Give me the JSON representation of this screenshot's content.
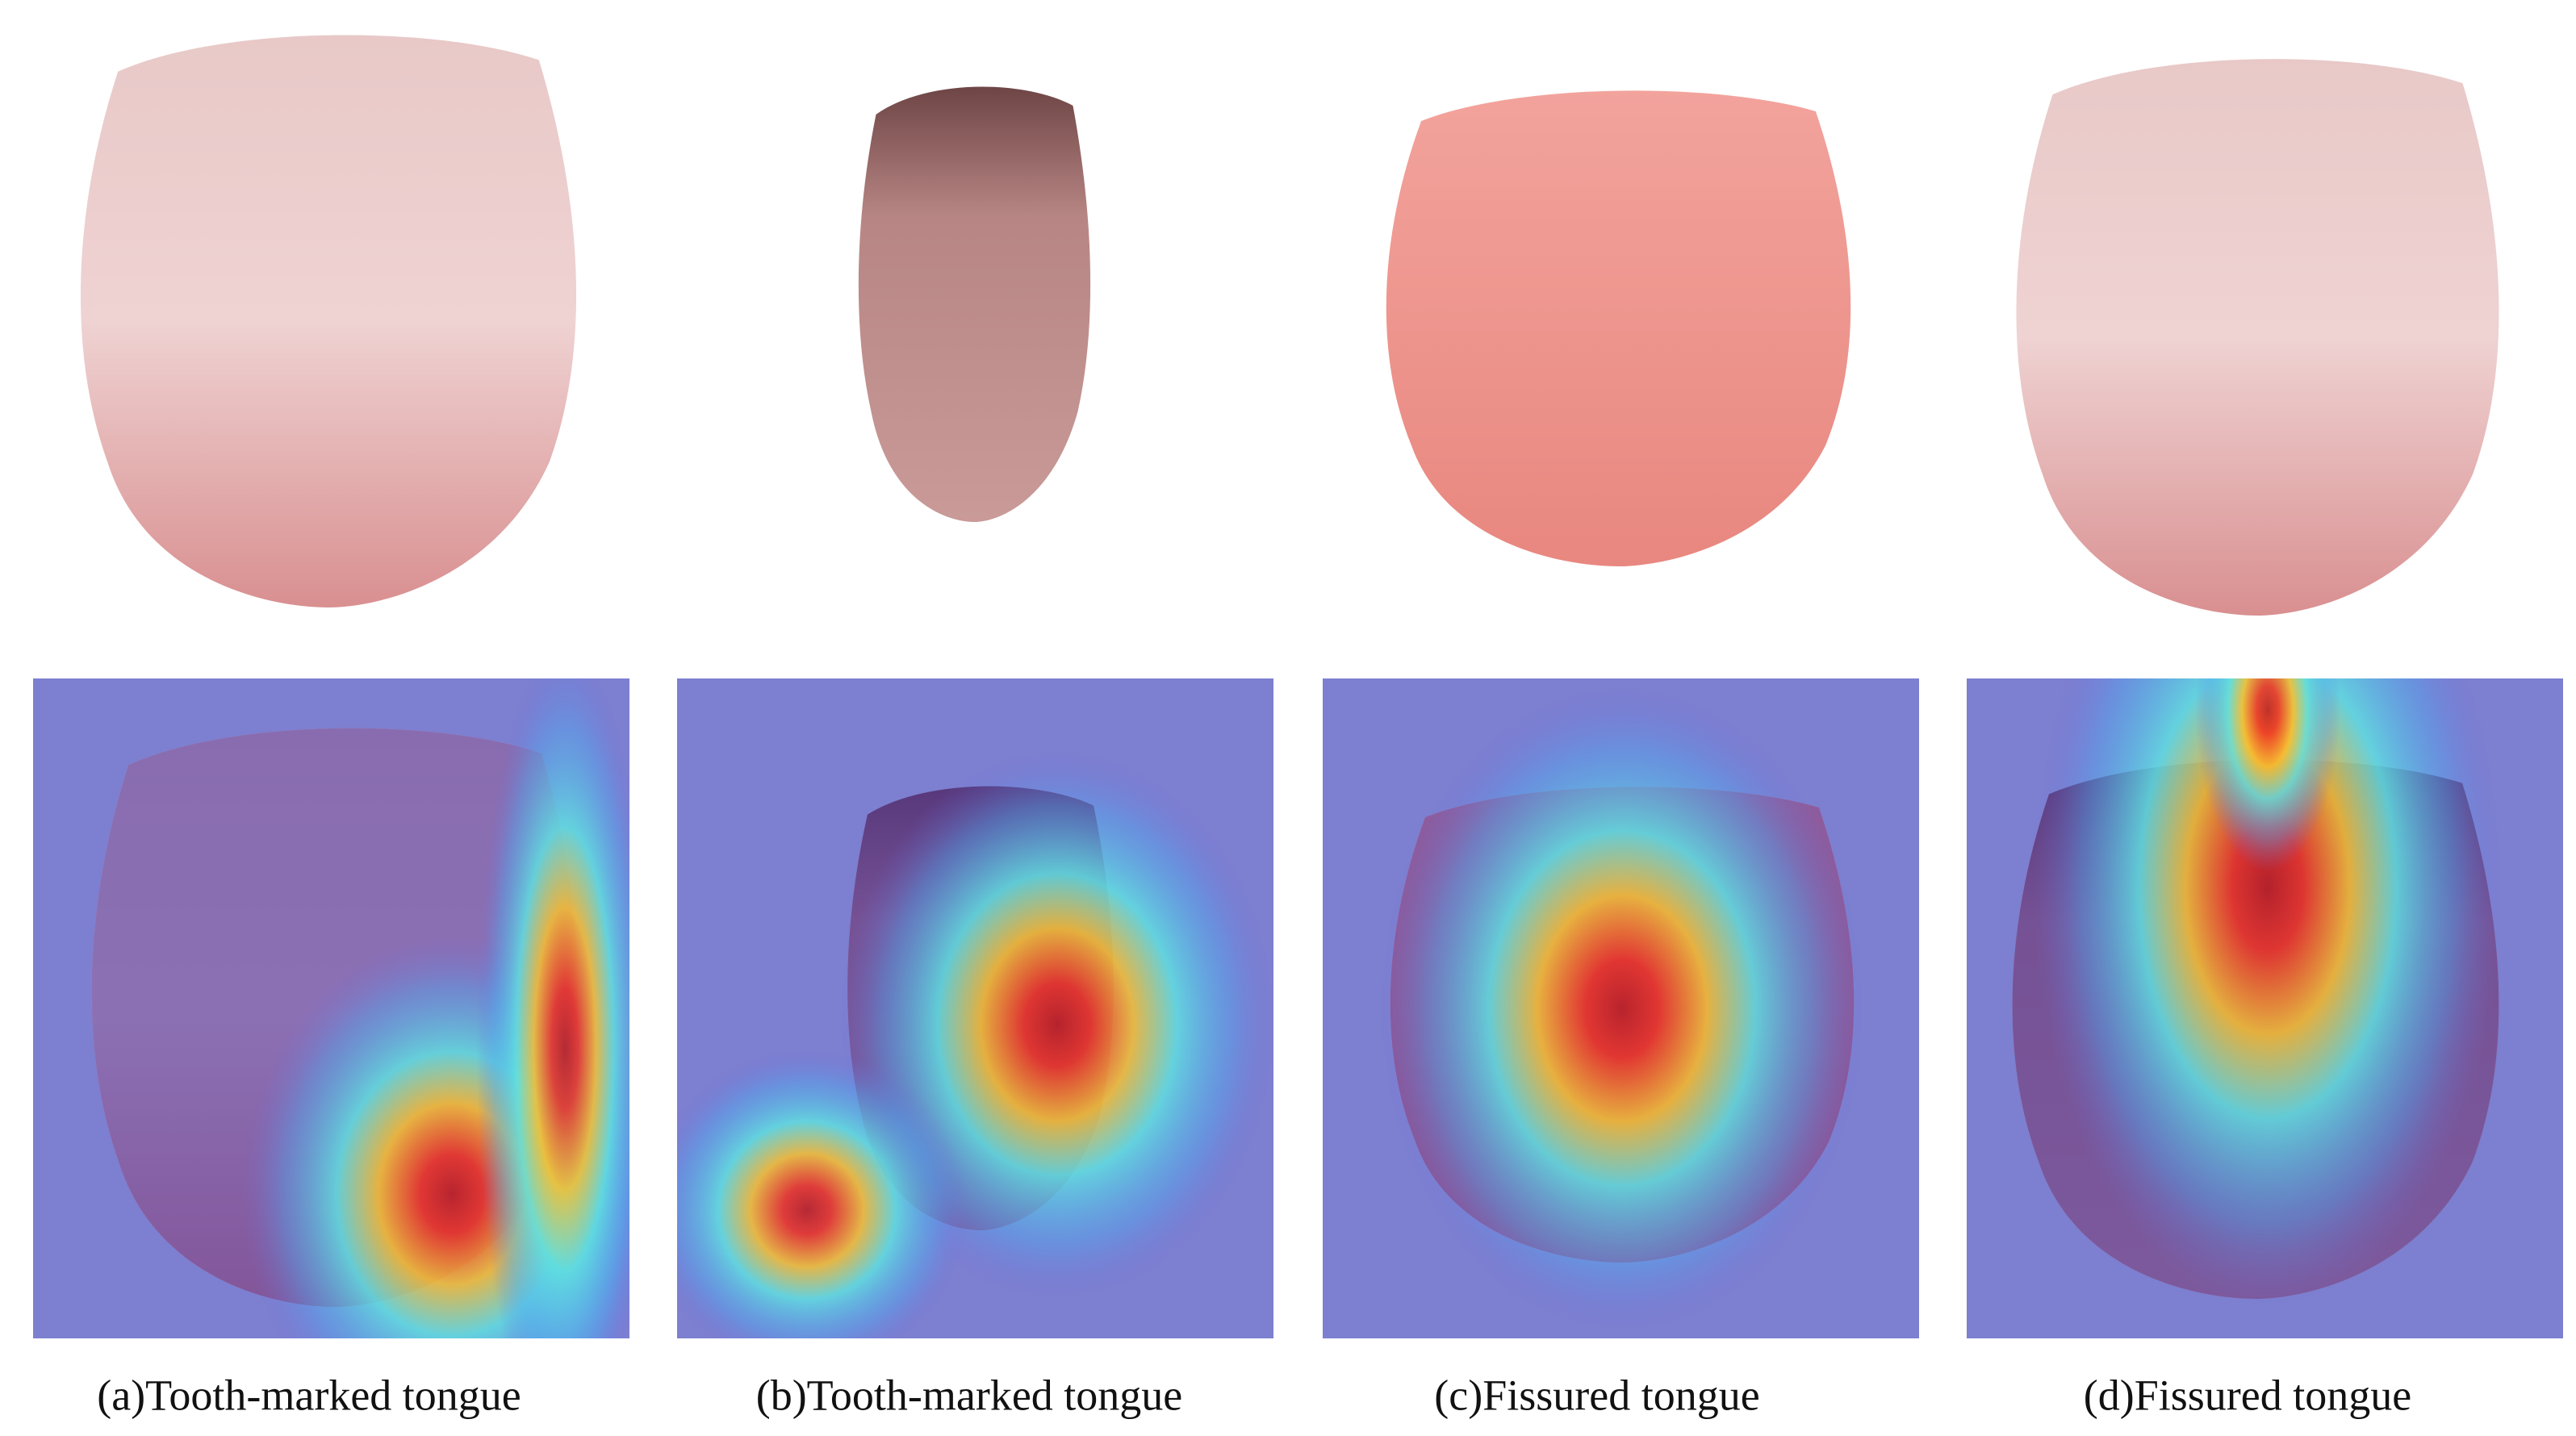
{
  "panels": [
    {
      "caption": "(a)Tooth-marked tongue"
    },
    {
      "caption": "(b)Tooth-marked tongue"
    },
    {
      "caption": "(c)Fissured tongue"
    },
    {
      "caption": "(d)Fissured tongue"
    }
  ]
}
